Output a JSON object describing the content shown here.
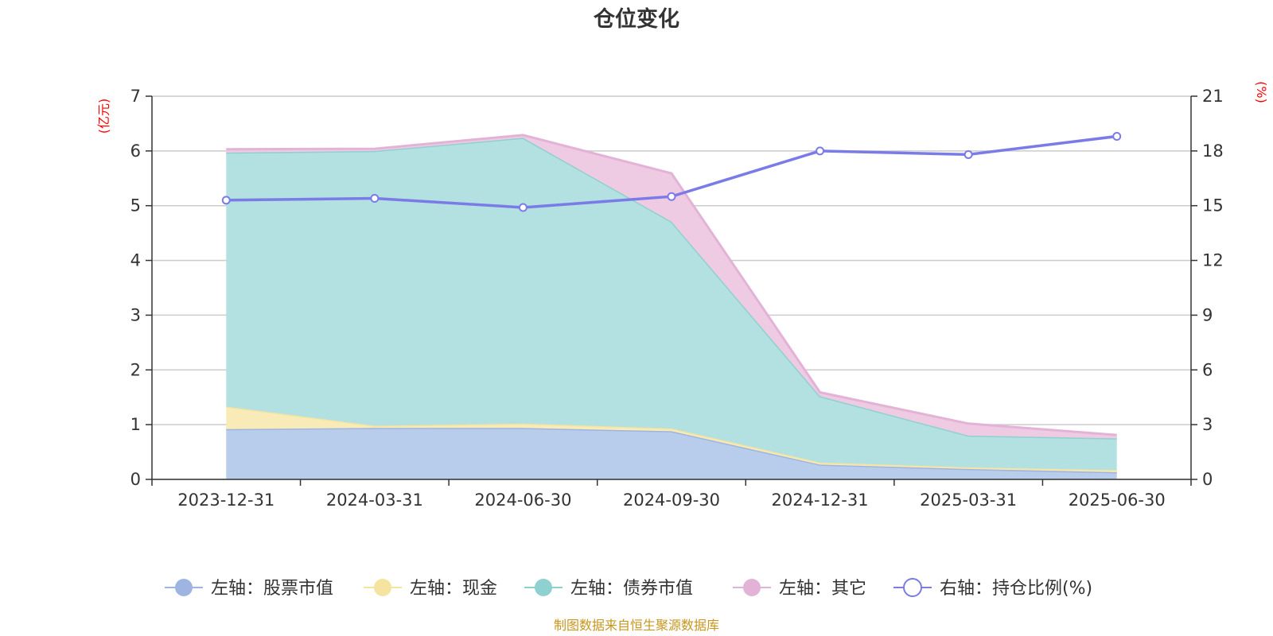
{
  "chart_data": {
    "type": "area",
    "title": "仓位变化",
    "left_unit": "(亿元)",
    "right_unit": "(%)",
    "categories": [
      "2023-12-31",
      "2024-03-31",
      "2024-06-30",
      "2024-09-30",
      "2024-12-31",
      "2025-03-31",
      "2025-06-30"
    ],
    "left_axis": {
      "min": 0,
      "max": 7,
      "interval": 1,
      "ticks": [
        "0",
        "1",
        "2",
        "3",
        "4",
        "5",
        "6",
        "7"
      ]
    },
    "right_axis": {
      "min": 0,
      "max": 21,
      "interval": 3,
      "ticks": [
        "0",
        "3",
        "6",
        "9",
        "12",
        "15",
        "18",
        "21"
      ]
    },
    "grid": true,
    "stacked": true,
    "series": [
      {
        "name": "左轴：股票市值",
        "axis": "left",
        "type": "area",
        "color": "#9db5e0",
        "fill": "#b8cceb",
        "values": [
          0.92,
          0.94,
          0.94,
          0.88,
          0.27,
          0.19,
          0.13
        ]
      },
      {
        "name": "左轴：现金",
        "axis": "left",
        "type": "area",
        "color": "#f5e3a0",
        "fill": "#f8ebb8",
        "values": [
          0.41,
          0.04,
          0.08,
          0.05,
          0.04,
          0.03,
          0.04
        ]
      },
      {
        "name": "左轴：债券市值",
        "axis": "left",
        "type": "area",
        "color": "#8fd0d0",
        "fill": "#b3e0e0",
        "values": [
          4.64,
          5.02,
          5.22,
          3.78,
          1.21,
          0.58,
          0.58
        ]
      },
      {
        "name": "左轴：其它",
        "axis": "left",
        "type": "area",
        "color": "#e3b3d7",
        "fill": "#eecbe3",
        "values": [
          0.06,
          0.04,
          0.05,
          0.88,
          0.07,
          0.22,
          0.06
        ]
      },
      {
        "name": "右轴：持仓比例(%)",
        "axis": "right",
        "type": "line",
        "color": "#7b7be8",
        "values": [
          15.3,
          15.4,
          14.9,
          15.5,
          18.0,
          17.8,
          18.8
        ]
      }
    ],
    "legend_position": "bottom",
    "source": "制图数据来自恒生聚源数据库"
  }
}
